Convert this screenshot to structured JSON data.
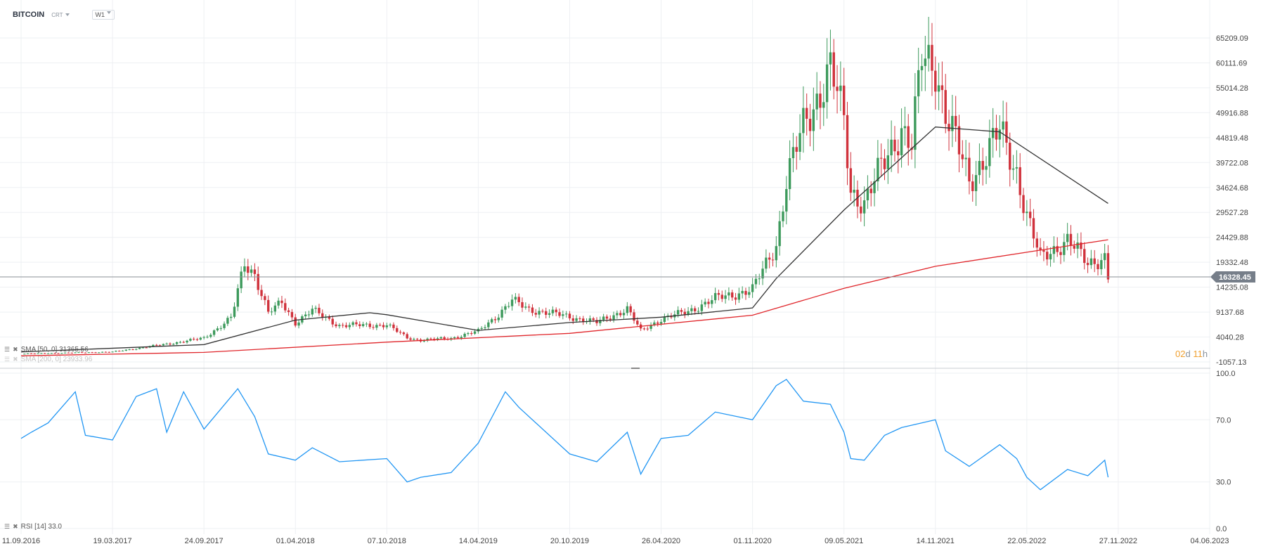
{
  "header": {
    "symbol": "BITCOIN",
    "sub": "CRT",
    "timeframe": "W1"
  },
  "timer": {
    "d": "02",
    "d_unit": "d",
    "h": "11",
    "h_unit": "h"
  },
  "indicators": {
    "sma50": "SMA [50, 0] 31365.56",
    "sma200": "SMA [200, 0] 23933.96",
    "rsi": "RSI [14] 33.0"
  },
  "colors": {
    "up": "#3d9a5c",
    "down": "#d0323c",
    "sma50": "#333333",
    "sma200": "#e0262b",
    "rsi": "#2196f3",
    "grid": "#eef0f3",
    "price_tag": "#767e89"
  },
  "chart_data": [
    {
      "type": "candlestick",
      "title": "BITCOIN",
      "timeframe": "W1",
      "ylim": [
        -1057.13,
        70000
      ],
      "yticks": [
        "65209.09",
        "60111.69",
        "55014.28",
        "49916.88",
        "44819.48",
        "39722.08",
        "34624.68",
        "29527.28",
        "24429.88",
        "19332.48",
        "14235.08",
        "9137.68",
        "4040.28",
        "-1057.13"
      ],
      "xticks": [
        "11.09.2016",
        "19.03.2017",
        "24.09.2017",
        "01.04.2018",
        "07.10.2018",
        "14.04.2019",
        "20.10.2019",
        "26.04.2020",
        "01.11.2020",
        "09.05.2021",
        "14.11.2021",
        "22.05.2022",
        "27.11.2022",
        "04.06.2023"
      ],
      "last_price": "16328.45",
      "series_close_points": [
        [
          "11.09.2016",
          600
        ],
        [
          "19.03.2017",
          1000
        ],
        [
          "02.07.2017",
          2500
        ],
        [
          "24.09.2017",
          3800
        ],
        [
          "20.11.2017",
          8000
        ],
        [
          "17.12.2017",
          19000
        ],
        [
          "07.01.2018",
          17000
        ],
        [
          "04.02.2018",
          9000
        ],
        [
          "04.03.2018",
          11000
        ],
        [
          "01.04.2018",
          7000
        ],
        [
          "06.05.2018",
          9500
        ],
        [
          "01.07.2018",
          6400
        ],
        [
          "07.10.2018",
          6500
        ],
        [
          "18.11.2018",
          3900
        ],
        [
          "16.12.2018",
          3400
        ],
        [
          "17.02.2019",
          3800
        ],
        [
          "14.04.2019",
          5200
        ],
        [
          "26.05.2019",
          8700
        ],
        [
          "23.06.2019",
          11500
        ],
        [
          "28.07.2019",
          9700
        ],
        [
          "20.10.2019",
          8200
        ],
        [
          "15.12.2019",
          7000
        ],
        [
          "16.02.2020",
          9800
        ],
        [
          "15.03.2020",
          5300
        ],
        [
          "26.04.2020",
          7700
        ],
        [
          "21.06.2020",
          9300
        ],
        [
          "16.08.2020",
          11900
        ],
        [
          "01.11.2020",
          13700
        ],
        [
          "20.12.2020",
          23000
        ],
        [
          "10.01.2021",
          36000
        ],
        [
          "14.02.2021",
          47000
        ],
        [
          "11.04.2021",
          59000
        ],
        [
          "09.05.2021",
          48000
        ],
        [
          "23.05.2021",
          34000
        ],
        [
          "20.06.2021",
          31500
        ],
        [
          "01.08.2021",
          40000
        ],
        [
          "05.09.2021",
          47000
        ],
        [
          "26.09.2021",
          43000
        ],
        [
          "17.10.2021",
          61000
        ],
        [
          "14.11.2021",
          60000
        ],
        [
          "05.12.2021",
          50000
        ],
        [
          "23.01.2022",
          36000
        ],
        [
          "27.03.2022",
          46000
        ],
        [
          "01.05.2022",
          38000
        ],
        [
          "22.05.2022",
          29000
        ],
        [
          "19.06.2022",
          20000
        ],
        [
          "14.08.2022",
          24000
        ],
        [
          "25.09.2022",
          19000
        ],
        [
          "30.10.2022",
          20500
        ],
        [
          "06.11.2022",
          16328
        ]
      ],
      "sma50_points": [
        [
          "11.09.2016",
          1000
        ],
        [
          "24.09.2017",
          2500
        ],
        [
          "01.04.2018",
          7500
        ],
        [
          "02.09.2018",
          9000
        ],
        [
          "07.10.2018",
          8600
        ],
        [
          "14.04.2019",
          5400
        ],
        [
          "20.10.2019",
          7000
        ],
        [
          "26.04.2020",
          8100
        ],
        [
          "01.11.2020",
          10000
        ],
        [
          "20.12.2020",
          16000
        ],
        [
          "09.05.2021",
          30000
        ],
        [
          "14.11.2021",
          47000
        ],
        [
          "27.03.2022",
          46000
        ],
        [
          "06.11.2022",
          31365.56
        ]
      ],
      "sma200_points": [
        [
          "11.09.2016",
          200
        ],
        [
          "24.09.2017",
          900
        ],
        [
          "07.10.2018",
          3000
        ],
        [
          "20.10.2019",
          4800
        ],
        [
          "01.11.2020",
          8500
        ],
        [
          "09.05.2021",
          14000
        ],
        [
          "14.11.2021",
          18500
        ],
        [
          "06.11.2022",
          23933.96
        ]
      ]
    },
    {
      "type": "line",
      "title": "RSI [14]",
      "ylim": [
        0,
        100
      ],
      "yticks": [
        "100.0",
        "70.0",
        "30.0",
        "0.0"
      ],
      "last_value": 33.0,
      "points": [
        [
          "11.09.2016",
          58
        ],
        [
          "02.10.2016",
          62
        ],
        [
          "06.11.2016",
          68
        ],
        [
          "01.01.2017",
          88
        ],
        [
          "22.01.2017",
          60
        ],
        [
          "19.03.2017",
          57
        ],
        [
          "07.05.2017",
          85
        ],
        [
          "18.06.2017",
          90
        ],
        [
          "09.07.2017",
          62
        ],
        [
          "13.08.2017",
          88
        ],
        [
          "24.09.2017",
          64
        ],
        [
          "03.12.2017",
          90
        ],
        [
          "07.01.2018",
          72
        ],
        [
          "04.02.2018",
          48
        ],
        [
          "01.04.2018",
          44
        ],
        [
          "06.05.2018",
          52
        ],
        [
          "01.07.2018",
          43
        ],
        [
          "07.10.2018",
          45
        ],
        [
          "18.11.2018",
          30
        ],
        [
          "16.12.2018",
          33
        ],
        [
          "17.02.2019",
          36
        ],
        [
          "14.04.2019",
          55
        ],
        [
          "09.06.2019",
          88
        ],
        [
          "07.07.2019",
          78
        ],
        [
          "20.10.2019",
          48
        ],
        [
          "15.12.2019",
          43
        ],
        [
          "16.02.2020",
          62
        ],
        [
          "15.03.2020",
          35
        ],
        [
          "26.04.2020",
          58
        ],
        [
          "21.06.2020",
          60
        ],
        [
          "16.08.2020",
          75
        ],
        [
          "01.11.2020",
          70
        ],
        [
          "20.12.2020",
          92
        ],
        [
          "10.01.2021",
          96
        ],
        [
          "14.02.2021",
          82
        ],
        [
          "11.04.2021",
          80
        ],
        [
          "09.05.2021",
          62
        ],
        [
          "23.05.2021",
          45
        ],
        [
          "20.06.2021",
          44
        ],
        [
          "01.08.2021",
          60
        ],
        [
          "05.09.2021",
          65
        ],
        [
          "14.11.2021",
          70
        ],
        [
          "05.12.2021",
          50
        ],
        [
          "23.01.2022",
          40
        ],
        [
          "27.03.2022",
          54
        ],
        [
          "01.05.2022",
          45
        ],
        [
          "22.05.2022",
          33
        ],
        [
          "19.06.2022",
          25
        ],
        [
          "14.08.2022",
          38
        ],
        [
          "25.09.2022",
          34
        ],
        [
          "30.10.2022",
          44
        ],
        [
          "06.11.2022",
          33
        ]
      ]
    }
  ]
}
